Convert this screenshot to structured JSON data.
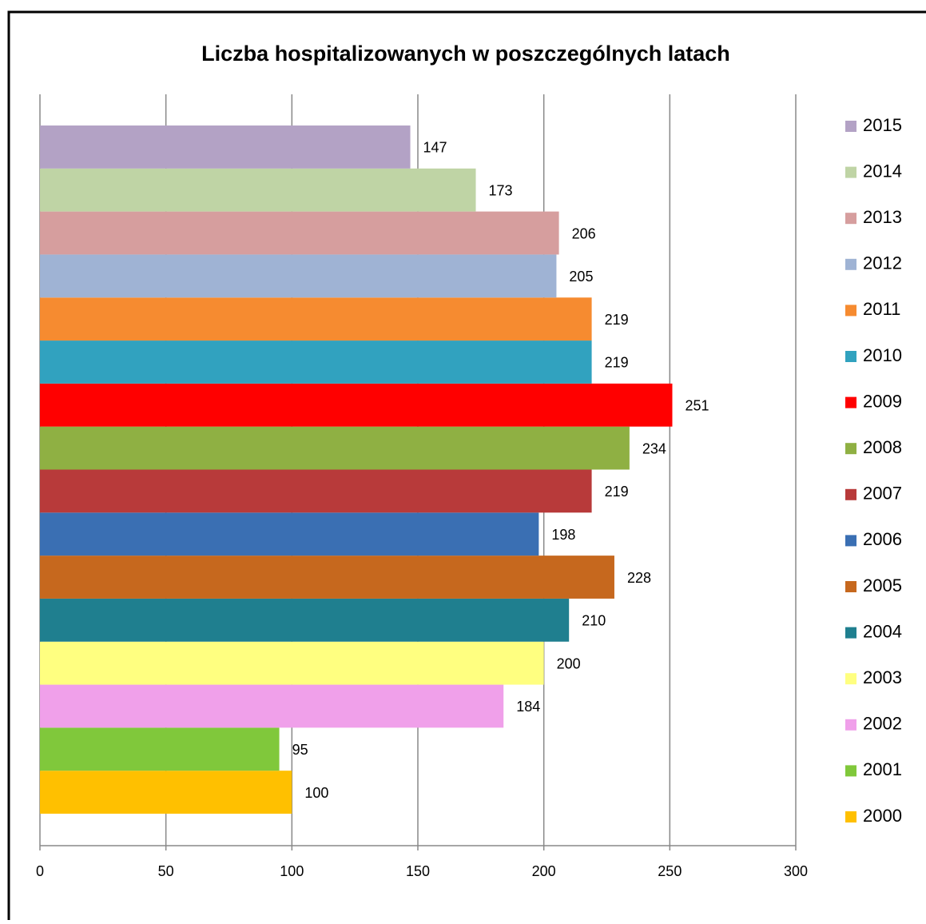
{
  "chart_data": {
    "type": "bar",
    "orientation": "horizontal",
    "title": "Liczba hospitalizowanych  w poszczególnych latach",
    "categories": [
      "2000",
      "2001",
      "2002",
      "2003",
      "2004",
      "2005",
      "2006",
      "2007",
      "2008",
      "2009",
      "2010",
      "2011",
      "2012",
      "2013",
      "2014",
      "2015"
    ],
    "values": [
      100,
      95,
      184,
      200,
      210,
      228,
      198,
      219,
      234,
      251,
      219,
      219,
      205,
      206,
      173,
      147
    ],
    "colors": [
      "#ffc000",
      "#80c83b",
      "#f0a0ea",
      "#ffff80",
      "#1f7f8f",
      "#c6681e",
      "#3a6fb3",
      "#b83a3a",
      "#8fb043",
      "#ff0000",
      "#31a2bf",
      "#f68b30",
      "#9fb3d4",
      "#d69e9e",
      "#bfd4a5",
      "#b3a2c5"
    ],
    "xlim": [
      0,
      300
    ],
    "xticks": [
      0,
      50,
      100,
      150,
      200,
      250,
      300
    ],
    "grid": true,
    "legend": "right"
  }
}
